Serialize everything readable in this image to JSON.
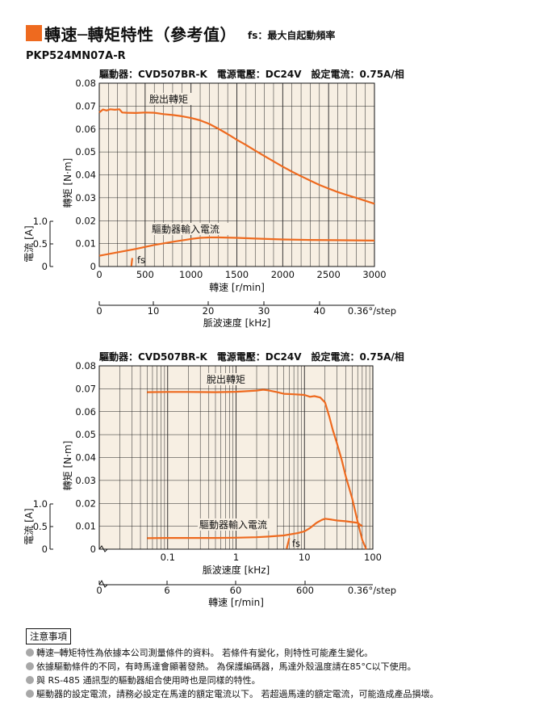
{
  "header": {
    "title": "轉速─轉矩特性（參考值）",
    "subtitle": "fs：最大自起動頻率",
    "model": "PKP524MN07A-R"
  },
  "colors": {
    "accent": "#ee6a1f",
    "plot_bg": "#f7efe3",
    "curve": "#ee6a1f"
  },
  "chart_data": [
    {
      "type": "line",
      "conditions": "驅動器：CVD507BR-K　電源電壓：DC24V　設定電流：0.75A/相",
      "xlabel": "轉速 [r/min]",
      "ylabel": "轉矩 [N·m]",
      "ylabel_secondary": "電流 [A]",
      "x_scale": "linear",
      "xlim": [
        0,
        3000
      ],
      "ylim": [
        0,
        0.08
      ],
      "x_ticks": [
        "0",
        "500",
        "1000",
        "1500",
        "2000",
        "2500",
        "3000"
      ],
      "y_ticks": [
        "0",
        "0.01",
        "0.02",
        "0.03",
        "0.04",
        "0.05",
        "0.06",
        "0.07",
        "0.08"
      ],
      "current_ticks": [
        "0",
        "0.5",
        "1.0"
      ],
      "secondary_axis": {
        "label": "脈波速度 [kHz]",
        "ticks": [
          "0",
          "10",
          "20",
          "30",
          "40"
        ],
        "suffix": "0.36°/step"
      },
      "grid": true,
      "series": [
        {
          "name": "脫出轉矩",
          "x": [
            0,
            40,
            80,
            120,
            170,
            220,
            250,
            300,
            400,
            500,
            600,
            700,
            800,
            900,
            1000,
            1100,
            1200,
            1300,
            1400,
            1500,
            1600,
            1700,
            1800,
            1900,
            2000,
            2100,
            2200,
            2300,
            2400,
            2500,
            2600,
            2700,
            2800,
            2900,
            3000
          ],
          "y": [
            0.0672,
            0.0685,
            0.0681,
            0.0686,
            0.0684,
            0.0686,
            0.0672,
            0.0671,
            0.067,
            0.0672,
            0.0671,
            0.0665,
            0.0661,
            0.0656,
            0.0648,
            0.0638,
            0.0622,
            0.0601,
            0.0578,
            0.0553,
            0.053,
            0.0506,
            0.0482,
            0.0459,
            0.0436,
            0.0414,
            0.0394,
            0.0375,
            0.0356,
            0.034,
            0.0325,
            0.0312,
            0.03,
            0.0287,
            0.0274
          ]
        },
        {
          "name": "驅動器輸入電流",
          "x": [
            0,
            200,
            400,
            600,
            800,
            1000,
            1100,
            1200,
            1300,
            1500,
            1700,
            2000,
            2300,
            2600,
            3000
          ],
          "y": [
            0.0047,
            0.0062,
            0.0077,
            0.0094,
            0.0108,
            0.012,
            0.0125,
            0.0127,
            0.0127,
            0.0125,
            0.0122,
            0.0118,
            0.0116,
            0.0115,
            0.0113
          ]
        }
      ],
      "fs_label": "fs",
      "fs_x": [
        350,
        360
      ],
      "fs_y": [
        0.0002,
        0.0037
      ]
    },
    {
      "type": "line",
      "conditions": "驅動器：CVD507BR-K　電源電壓：DC24V　設定電流：0.75A/相",
      "xlabel": "脈波速度 [kHz]",
      "ylabel": "轉矩 [N·m]",
      "ylabel_secondary": "電流 [A]",
      "x_scale": "log",
      "xlim": [
        0.01,
        100
      ],
      "ylim": [
        0,
        0.08
      ],
      "x_ticks": [
        "0.1",
        "1",
        "10",
        "100"
      ],
      "y_ticks": [
        "0",
        "0.01",
        "0.02",
        "0.03",
        "0.04",
        "0.05",
        "0.06",
        "0.07",
        "0.08"
      ],
      "current_ticks": [
        "0",
        "0.5",
        "1.0"
      ],
      "secondary_axis": {
        "label": "轉速 [r/min]",
        "ticks": [
          "0",
          "6",
          "60",
          "600"
        ],
        "suffix": "0.36°/step"
      },
      "grid": true,
      "series": [
        {
          "name": "脫出轉矩",
          "x": [
            0.05,
            0.1,
            0.2,
            0.5,
            1,
            2,
            2.5,
            3,
            4,
            5,
            7,
            10,
            12,
            14,
            17,
            20,
            23,
            26,
            30,
            35,
            40,
            50,
            60,
            70,
            80
          ],
          "y": [
            0.0685,
            0.0686,
            0.0686,
            0.0685,
            0.0687,
            0.0692,
            0.0696,
            0.0693,
            0.0685,
            0.0678,
            0.0676,
            0.0673,
            0.0665,
            0.0668,
            0.0662,
            0.064,
            0.058,
            0.052,
            0.046,
            0.039,
            0.032,
            0.022,
            0.012,
            0.004,
            0.0
          ]
        },
        {
          "name": "驅動器輸入電流",
          "x": [
            0.05,
            0.1,
            0.2,
            0.5,
            1,
            2,
            3,
            5,
            8,
            10,
            12,
            15,
            18,
            20,
            25,
            30,
            40,
            50,
            60,
            70
          ],
          "y": [
            0.0048,
            0.0049,
            0.0049,
            0.0049,
            0.005,
            0.0052,
            0.0055,
            0.006,
            0.007,
            0.0078,
            0.0092,
            0.0115,
            0.0128,
            0.0133,
            0.0129,
            0.0125,
            0.0122,
            0.0118,
            0.0115,
            0.01
          ]
        }
      ],
      "fs_label": "fs",
      "fs_x": [
        5.5,
        6.0
      ],
      "fs_y": [
        0.0002,
        0.0048
      ]
    }
  ],
  "notes": {
    "title": "注意事項",
    "items": [
      "轉速─轉矩特性為依據本公司測量條件的資料。 若條件有變化，則特性可能產生變化。",
      "依據驅動條件的不同，有時馬達會顯著發熱。 為保護編碼器，馬達外殼溫度請在85°C以下使用。",
      "與 RS-485 通訊型的驅動器組合使用時也是同樣的特性。",
      "驅動器的設定電流，請務必設定在馬達的額定電流以下。 若超過馬達的額定電流，可能造成產品損壞。"
    ]
  }
}
